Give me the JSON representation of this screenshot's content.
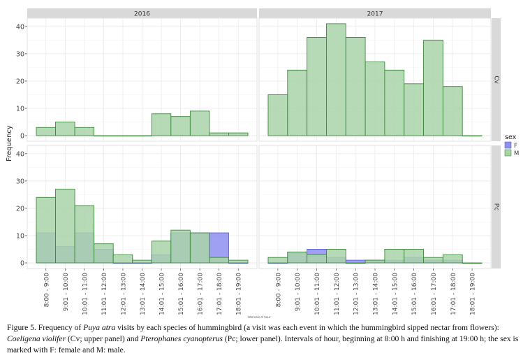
{
  "chart_data": {
    "type": "bar",
    "ylabel": "Frequency",
    "xlabel": "Intervals of hour",
    "legend": {
      "title": "sex",
      "position": "right",
      "items": [
        {
          "key": "F",
          "label": "F",
          "color": "#8f8ff0"
        },
        {
          "key": "M",
          "label": "M",
          "color": "#a9d3a9"
        }
      ]
    },
    "colors": {
      "F_fill": "#8f8ff0",
      "F_stroke": "#6060e0",
      "M_fill": "#a9d3a9",
      "M_stroke": "#3e8a3e",
      "strip_bg": "#d9d9d9",
      "grid": "#ebebeb"
    },
    "facet_columns": [
      "2016",
      "2017"
    ],
    "facet_rows": [
      "Cv",
      "Pc"
    ],
    "ylim": [
      0,
      42
    ],
    "yticks": [
      0,
      10,
      20,
      30,
      40
    ],
    "categories": [
      "8:00 - 9:00",
      "9:01 - 10:00",
      "10:01 - 11:00",
      "11:01 - 12:00",
      "12:01 - 13:00",
      "13:01 - 14:00",
      "14:01 - 15:00",
      "15:01 - 16:00",
      "16:01 - 17:00",
      "17:01 - 18:00",
      "18:01 - 19:00"
    ],
    "panels": [
      {
        "year": "2016",
        "species": "Cv",
        "series": [
          {
            "name": "M",
            "values": [
              3,
              5,
              3,
              0,
              0,
              0,
              8,
              7,
              9,
              1,
              1
            ]
          }
        ]
      },
      {
        "year": "2017",
        "species": "Cv",
        "series": [
          {
            "name": "M",
            "values": [
              15,
              24,
              36,
              41,
              36,
              27,
              24,
              19,
              35,
              18,
              0
            ]
          }
        ]
      },
      {
        "year": "2016",
        "species": "Pc",
        "series": [
          {
            "name": "F",
            "values": [
              11,
              6,
              11,
              5,
              0,
              0,
              3,
              11,
              11,
              11,
              0
            ]
          },
          {
            "name": "M",
            "values": [
              24,
              27,
              21,
              7,
              3,
              1,
              8,
              12,
              11,
              2,
              1
            ]
          }
        ]
      },
      {
        "year": "2017",
        "species": "Pc",
        "series": [
          {
            "name": "F",
            "values": [
              0,
              4,
              5,
              2,
              1,
              1,
              1,
              2,
              1,
              1,
              0
            ]
          },
          {
            "name": "M",
            "values": [
              2,
              4,
              3,
              5,
              0,
              1,
              5,
              5,
              2,
              3,
              0
            ]
          }
        ]
      }
    ]
  },
  "caption": {
    "figure_label": "Figure 5.",
    "text_1": " Frequency of ",
    "species_puya": "Puya atra",
    "text_2": " visits by each species of hummingbird (a visit was each event in which the hummingbird sipped nectar from flowers): ",
    "species_cv": "Coeligena violifer",
    "text_3": " (Cv; upper panel) and ",
    "species_pc": "Pterophanes cyanopterus",
    "text_4": " (Pc; lower panel). Intervals of hour, beginning at 8:00 h and finishing at 19:00 h; the sex is marked with F: female and M: male."
  }
}
